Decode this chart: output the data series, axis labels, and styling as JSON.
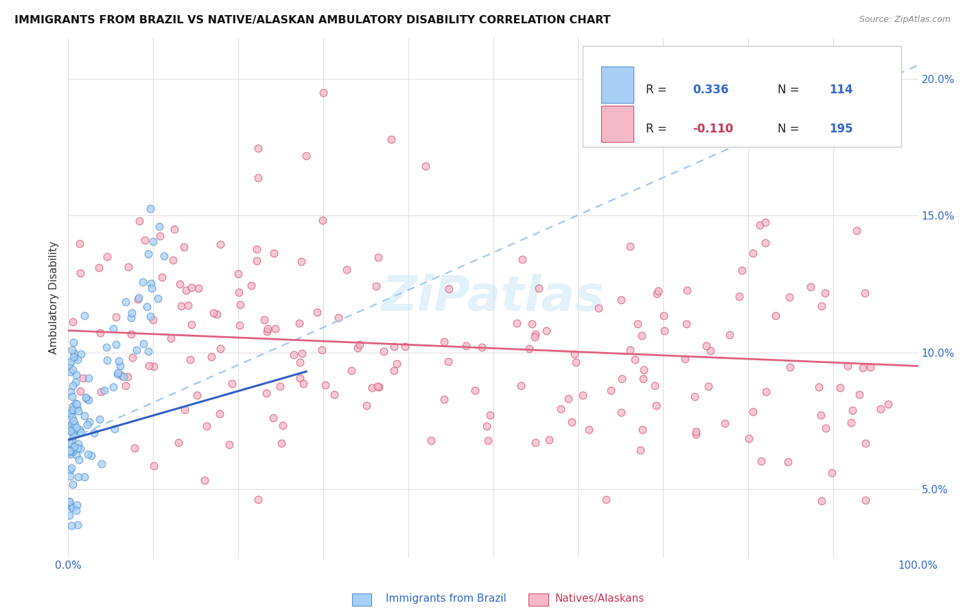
{
  "title": "IMMIGRANTS FROM BRAZIL VS NATIVE/ALASKAN AMBULATORY DISABILITY CORRELATION CHART",
  "source": "Source: ZipAtlas.com",
  "ylabel": "Ambulatory Disability",
  "legend_r1_label": "R = ",
  "legend_r1_val": "0.336",
  "legend_n1_label": "N = ",
  "legend_n1_val": "114",
  "legend_r2_label": "R = ",
  "legend_r2_val": "-0.110",
  "legend_n2_label": "N = ",
  "legend_n2_val": "195",
  "color_brazil_fill": "#a8d0f5",
  "color_brazil_edge": "#5090d0",
  "color_native_fill": "#f5b8c8",
  "color_native_edge": "#d05070",
  "color_brazil_solid_line": "#3060c0",
  "color_brazil_dashed_line": "#a0c8f0",
  "color_native_solid_line": "#e06080",
  "color_r_val": "#3366cc",
  "color_r2_val": "#cc3355",
  "color_n_val": "#3366cc",
  "color_text": "#333333",
  "color_source": "#888888",
  "color_grid": "#e0e0e0",
  "color_bg": "#ffffff",
  "color_tick_label": "#3366cc",
  "watermark_text": "ZiPatlas",
  "watermark_color": "#d0e8f8",
  "xlim": [
    0.0,
    1.0
  ],
  "ylim": [
    0.025,
    0.215
  ],
  "yticks": [
    0.05,
    0.1,
    0.15,
    0.2
  ],
  "ytick_labels": [
    "5.0%",
    "10.0%",
    "15.0%",
    "20.0%"
  ],
  "xtick_labels_show": [
    "0.0%",
    "100.0%"
  ],
  "brazil_trendline_solid": {
    "x": [
      0.0,
      0.28
    ],
    "y": [
      0.068,
      0.093
    ]
  },
  "brazil_trendline_dashed": {
    "x": [
      0.0,
      1.0
    ],
    "y": [
      0.068,
      0.205
    ]
  },
  "native_trendline": {
    "x": [
      0.0,
      1.0
    ],
    "y": [
      0.108,
      0.095
    ]
  },
  "bottom_legend_brazil": "Immigrants from Brazil",
  "bottom_legend_native": "Natives/Alaskans"
}
